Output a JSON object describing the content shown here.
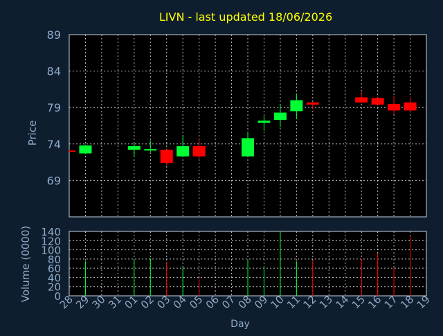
{
  "title": "LIVN - last updated 18/06/2026",
  "colors": {
    "background": "#0f1e2e",
    "plot_background": "#000000",
    "axis_text": "#8fa9c9",
    "title": "#ffff00",
    "grid": "#ffffff",
    "up": "#00ff33",
    "down": "#ff0000"
  },
  "chart_data": [
    {
      "type": "candlestick",
      "ylabel": "Price",
      "ylim": [
        64,
        89
      ],
      "yticks": [
        89,
        84,
        79,
        74,
        69
      ],
      "grid": true,
      "categories": [
        "28",
        "29",
        "30",
        "31",
        "01",
        "02",
        "03",
        "04",
        "05",
        "06",
        "07",
        "08",
        "09",
        "10",
        "11",
        "12",
        "13",
        "14",
        "15",
        "16",
        "17",
        "18",
        "19"
      ],
      "candles": [
        {
          "x": "28",
          "open": 73.1,
          "high": 73.1,
          "low": 73.0,
          "close": 73.0
        },
        {
          "x": "29",
          "open": 72.7,
          "high": 73.9,
          "low": 72.6,
          "close": 73.8
        },
        {
          "x": "01",
          "open": 73.2,
          "high": 74.2,
          "low": 72.2,
          "close": 73.7
        },
        {
          "x": "02",
          "open": 73.1,
          "high": 74.5,
          "low": 72.9,
          "close": 73.3
        },
        {
          "x": "03",
          "open": 73.2,
          "high": 73.4,
          "low": 71.1,
          "close": 71.4
        },
        {
          "x": "04",
          "open": 72.3,
          "high": 75.2,
          "low": 72.2,
          "close": 73.7
        },
        {
          "x": "05",
          "open": 73.7,
          "high": 74.6,
          "low": 72.0,
          "close": 72.3
        },
        {
          "x": "08",
          "open": 72.3,
          "high": 75.6,
          "low": 72.3,
          "close": 74.8
        },
        {
          "x": "09",
          "open": 76.9,
          "high": 77.8,
          "low": 75.8,
          "close": 77.2
        },
        {
          "x": "10",
          "open": 77.3,
          "high": 79.4,
          "low": 76.3,
          "close": 78.3
        },
        {
          "x": "11",
          "open": 78.5,
          "high": 80.9,
          "low": 77.4,
          "close": 80.0
        },
        {
          "x": "12",
          "open": 79.7,
          "high": 79.8,
          "low": 78.8,
          "close": 79.4
        },
        {
          "x": "15",
          "open": 80.4,
          "high": 81.1,
          "low": 79.6,
          "close": 79.7
        },
        {
          "x": "16",
          "open": 80.3,
          "high": 80.4,
          "low": 79.4,
          "close": 79.4
        },
        {
          "x": "17",
          "open": 79.5,
          "high": 80.6,
          "low": 78.1,
          "close": 78.6
        },
        {
          "x": "18",
          "open": 79.7,
          "high": 80.5,
          "low": 78.4,
          "close": 78.6
        }
      ]
    },
    {
      "type": "bar",
      "ylabel": "Volume (0000)",
      "xlabel": "Day",
      "ylim": [
        0,
        140
      ],
      "yticks": [
        140,
        120,
        100,
        80,
        60,
        40,
        20,
        0
      ],
      "grid": true,
      "categories": [
        "28",
        "29",
        "30",
        "31",
        "01",
        "02",
        "03",
        "04",
        "05",
        "06",
        "07",
        "08",
        "09",
        "10",
        "11",
        "12",
        "13",
        "14",
        "15",
        "16",
        "17",
        "18",
        "19"
      ],
      "bars": [
        {
          "x": "29",
          "value": 75,
          "direction": "up"
        },
        {
          "x": "01",
          "value": 78,
          "direction": "up"
        },
        {
          "x": "02",
          "value": 82,
          "direction": "up"
        },
        {
          "x": "03",
          "value": 74,
          "direction": "down"
        },
        {
          "x": "04",
          "value": 62,
          "direction": "up"
        },
        {
          "x": "05",
          "value": 40,
          "direction": "down"
        },
        {
          "x": "08",
          "value": 80,
          "direction": "up"
        },
        {
          "x": "09",
          "value": 65,
          "direction": "up"
        },
        {
          "x": "10",
          "value": 140,
          "direction": "up"
        },
        {
          "x": "11",
          "value": 75,
          "direction": "up"
        },
        {
          "x": "12",
          "value": 76,
          "direction": "down"
        },
        {
          "x": "15",
          "value": 80,
          "direction": "down"
        },
        {
          "x": "16",
          "value": 92,
          "direction": "down"
        },
        {
          "x": "17",
          "value": 61,
          "direction": "down"
        },
        {
          "x": "18",
          "value": 130,
          "direction": "down"
        }
      ]
    }
  ]
}
